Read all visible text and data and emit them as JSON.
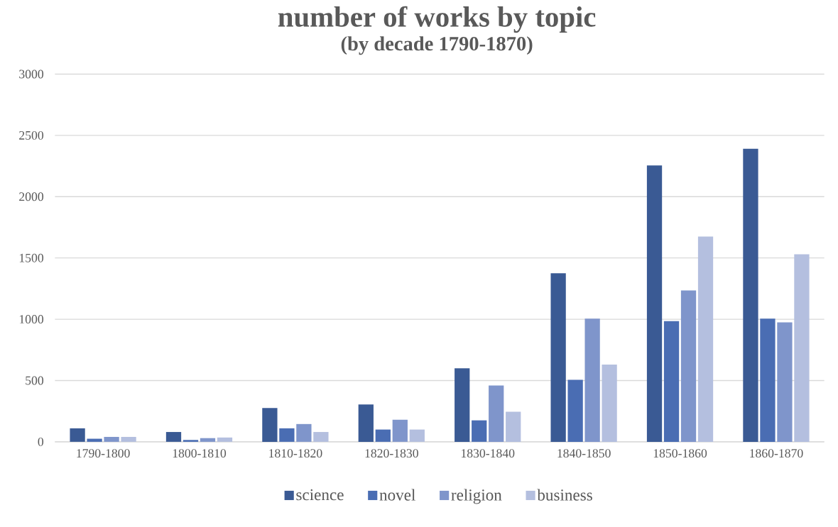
{
  "chart_data": {
    "type": "bar",
    "title": "number of works by topic",
    "subtitle": "(by decade 1790-1870)",
    "categories": [
      "1790-1800",
      "1800-1810",
      "1810-1820",
      "1820-1830",
      "1830-1840",
      "1840-1850",
      "1850-1860",
      "1860-1870"
    ],
    "series": [
      {
        "name": "science",
        "color": "#3a5a94",
        "values": [
          110,
          80,
          275,
          305,
          600,
          1375,
          2255,
          2390
        ]
      },
      {
        "name": "novel",
        "color": "#4a6db3",
        "values": [
          25,
          15,
          110,
          100,
          175,
          505,
          985,
          1005
        ]
      },
      {
        "name": "religion",
        "color": "#7f95cb",
        "values": [
          40,
          30,
          145,
          180,
          460,
          1005,
          1235,
          975
        ]
      },
      {
        "name": "business",
        "color": "#b4bfdf",
        "values": [
          40,
          35,
          80,
          100,
          245,
          630,
          1675,
          1530
        ]
      }
    ],
    "ylim": [
      0,
      3000
    ],
    "yticks": [
      0,
      500,
      1000,
      1500,
      2000,
      2500,
      3000
    ],
    "grid": "y",
    "legend": "bottom"
  }
}
